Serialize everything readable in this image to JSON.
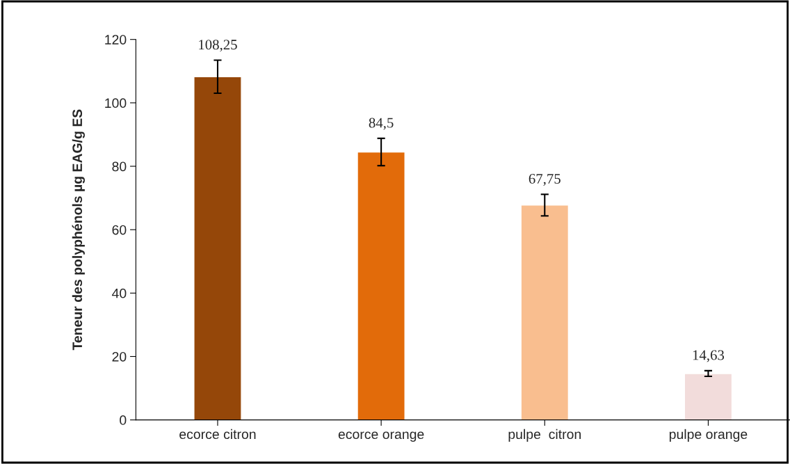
{
  "chart_data": {
    "type": "bar",
    "ylabel": "Teneur des polyphénols µg EAG/g ES",
    "categories": [
      "ecorce citron",
      "ecorce orange",
      "pulpe  citron",
      "pulpe orange"
    ],
    "values": [
      108.25,
      84.5,
      67.75,
      14.63
    ],
    "colors": [
      "#954709",
      "#e26b0a",
      "#f9be8f",
      "#f2dcdb"
    ],
    "errors": [
      5.2,
      4.3,
      3.4,
      0.9
    ],
    "value_labels": [
      "108,25",
      "84,5",
      "67,75",
      "14,63"
    ],
    "ylim": [
      0,
      120
    ],
    "yticks": [
      0,
      20,
      40,
      60,
      80,
      100,
      120
    ],
    "grid": false,
    "legend": false
  }
}
